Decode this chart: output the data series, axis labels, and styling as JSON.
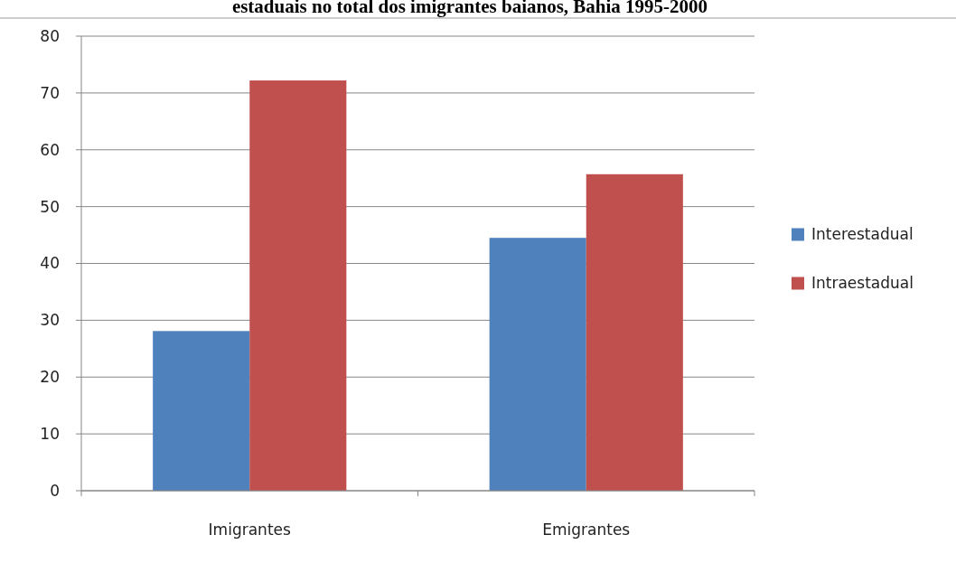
{
  "chart_data": {
    "type": "bar",
    "title": "estaduais no total dos imigrantes baianos, Bahia 1995-2000",
    "categories": [
      "Imigrantes",
      "Emigrantes"
    ],
    "series": [
      {
        "name": "Interestadual",
        "color": "#4f81bd",
        "values": [
          28.1,
          44.5
        ]
      },
      {
        "name": "Intraestadual",
        "color": "#c0504d",
        "values": [
          72.2,
          55.7
        ]
      }
    ],
    "ylim": [
      0,
      80
    ],
    "yticks": [
      0,
      10,
      20,
      30,
      40,
      50,
      60,
      70,
      80
    ],
    "grid": "y",
    "legend": "right"
  }
}
